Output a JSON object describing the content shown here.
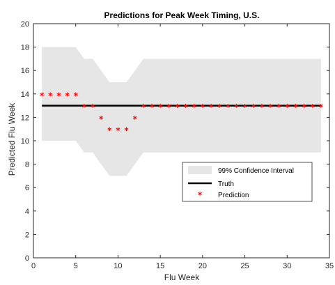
{
  "chart_data": {
    "type": "line",
    "title": "Predictions for Peak Week Timing, U.S.",
    "xlabel": "Flu Week",
    "ylabel": "Predicted Flu Week",
    "xlim": [
      0,
      35
    ],
    "ylim": [
      0,
      20
    ],
    "xticks": [
      0,
      5,
      10,
      15,
      20,
      25,
      30,
      35
    ],
    "yticks": [
      0,
      2,
      4,
      6,
      8,
      10,
      12,
      14,
      16,
      18,
      20
    ],
    "grid": false,
    "legend_position": "lower-right",
    "x": [
      1,
      2,
      3,
      4,
      5,
      6,
      7,
      8,
      9,
      10,
      11,
      12,
      13,
      14,
      15,
      16,
      17,
      18,
      19,
      20,
      21,
      22,
      23,
      24,
      25,
      26,
      27,
      28,
      29,
      30,
      31,
      32,
      33,
      34
    ],
    "series": [
      {
        "name": "99% Confidence Interval",
        "kind": "band",
        "color": "#e6e6e6",
        "lower": [
          10,
          10,
          10,
          10,
          10,
          9,
          9,
          8,
          7,
          7,
          7,
          8,
          9,
          9,
          9,
          9,
          9,
          9,
          9,
          9,
          9,
          9,
          9,
          9,
          9,
          9,
          9,
          9,
          9,
          9,
          9,
          9,
          9,
          9
        ],
        "upper": [
          18,
          18,
          18,
          18,
          18,
          17,
          17,
          16,
          15,
          15,
          15,
          16,
          17,
          17,
          17,
          17,
          17,
          17,
          17,
          17,
          17,
          17,
          17,
          17,
          17,
          17,
          17,
          17,
          17,
          17,
          17,
          17,
          17,
          17
        ]
      },
      {
        "name": "Truth",
        "kind": "line",
        "color": "#000000",
        "values": [
          13,
          13,
          13,
          13,
          13,
          13,
          13,
          13,
          13,
          13,
          13,
          13,
          13,
          13,
          13,
          13,
          13,
          13,
          13,
          13,
          13,
          13,
          13,
          13,
          13,
          13,
          13,
          13,
          13,
          13,
          13,
          13,
          13,
          13
        ]
      },
      {
        "name": "Prediction",
        "kind": "marker",
        "color": "#ff0000",
        "marker": "*",
        "values": [
          14,
          14,
          14,
          14,
          14,
          13,
          13,
          12,
          11,
          11,
          11,
          12,
          13,
          13,
          13,
          13,
          13,
          13,
          13,
          13,
          13,
          13,
          13,
          13,
          13,
          13,
          13,
          13,
          13,
          13,
          13,
          13,
          13,
          13
        ]
      }
    ]
  }
}
